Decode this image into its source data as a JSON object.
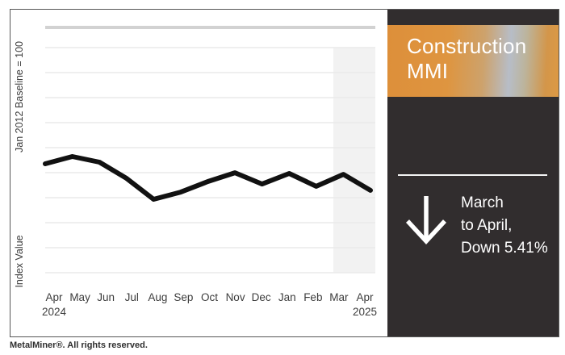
{
  "page": {
    "footer_text": "MetalMiner®. All rights reserved."
  },
  "panel": {
    "title_line1": "Construction",
    "title_line2": "MMI",
    "title_full": "Construction MMI",
    "change_line1": "March",
    "change_line2": "to April,",
    "change_line3": "Down 5.41%",
    "change_full": "March to April, Down 5.41%",
    "change_direction_icon": "arrow-down",
    "colors": {
      "panel_bg": "#312d2e",
      "banner_orange": "#dd9540",
      "banner_silver": "#b7bdc7",
      "text": "#ffffff"
    }
  },
  "chart_data": {
    "type": "line",
    "title": "Construction MMI",
    "x": [
      "Apr 2024",
      "May 2024",
      "Jun 2024",
      "Jul 2024",
      "Aug 2024",
      "Sep 2024",
      "Oct 2024",
      "Nov 2024",
      "Dec 2024",
      "Jan 2025",
      "Feb 2025",
      "Mar 2025",
      "Apr 2025"
    ],
    "x_month_labels": [
      "Apr",
      "May",
      "Jun",
      "Jul",
      "Aug",
      "Sep",
      "Oct",
      "Nov",
      "Dec",
      "Jan",
      "Feb",
      "Mar",
      "Apr"
    ],
    "x_year_first": "2024",
    "x_year_last": "2025",
    "series": [
      {
        "name": "Construction MMI",
        "values": [
          48.4,
          51.6,
          49.1,
          41.9,
          32.6,
          35.8,
          40.5,
          44.4,
          39.4,
          44.1,
          38.4,
          43.7,
          36.6
        ]
      }
    ],
    "values_note": "Y axis shows no numeric tick labels; values are visual estimates on a 0-100 scale of the plot height (truncated axis).",
    "ylabel": "Index Value",
    "y_axis_note": "Jan 2012 Baseline = 100",
    "ylim": [
      0,
      100
    ],
    "y_tick_labels": [],
    "x_tick_label_rows": 2,
    "gridlines": 10,
    "grid_color": "#eaeaea",
    "legend": "none",
    "highlight_band": {
      "from": "Mar 2025",
      "to": "Apr 2025",
      "color": "#f2f2f2"
    },
    "top_rule_color": "#d2d2d2",
    "line_color": "#111111",
    "line_width": 6,
    "label_color": "#3c3c3c"
  }
}
